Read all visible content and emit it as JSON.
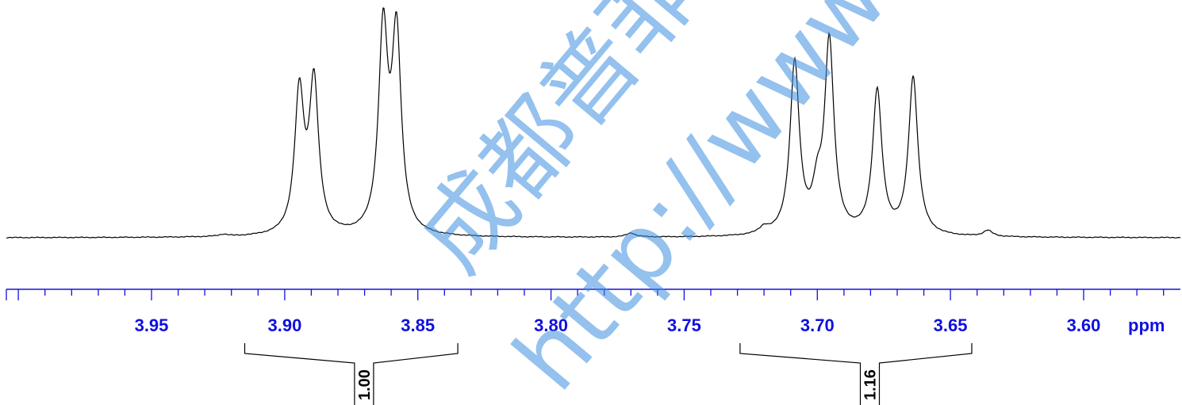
{
  "chart_data": {
    "type": "line",
    "title": "",
    "xlabel": "ppm",
    "ylabel": "",
    "x_reversed": true,
    "xlim": [
      4.0,
      3.5
    ],
    "x_ticks": [
      3.95,
      3.9,
      3.85,
      3.8,
      3.75,
      3.7,
      3.65,
      3.6
    ],
    "x_tick_labels": [
      "3.95",
      "3.90",
      "3.85",
      "3.80",
      "3.75",
      "3.70",
      "3.65",
      "3.60"
    ],
    "grid": false,
    "legend": "none",
    "colors": {
      "axis": "#1010e0",
      "trace": "#000000",
      "watermark": "#3d8fe0"
    },
    "baseline": 0.0,
    "peaks": [
      {
        "ppm": 3.8945,
        "height": 0.7
      },
      {
        "ppm": 3.889,
        "height": 0.75
      },
      {
        "ppm": 3.863,
        "height": 1.0
      },
      {
        "ppm": 3.858,
        "height": 0.98
      },
      {
        "ppm": 3.7085,
        "height": 0.86
      },
      {
        "ppm": 3.7,
        "height": 0.18
      },
      {
        "ppm": 3.6955,
        "height": 0.96
      },
      {
        "ppm": 3.6775,
        "height": 0.72
      },
      {
        "ppm": 3.664,
        "height": 0.79
      },
      {
        "ppm": 3.636,
        "height": 0.03
      },
      {
        "ppm": 3.77,
        "height": 0.02
      },
      {
        "ppm": 3.72,
        "height": 0.03
      },
      {
        "ppm": 3.923,
        "height": 0.01
      }
    ],
    "integrals": [
      {
        "from": 3.915,
        "to": 3.835,
        "value": "1.00"
      },
      {
        "from": 3.729,
        "to": 3.642,
        "value": "1.16"
      }
    ]
  },
  "watermark": {
    "line1": "成都普菲",
    "line2": "http://www."
  }
}
